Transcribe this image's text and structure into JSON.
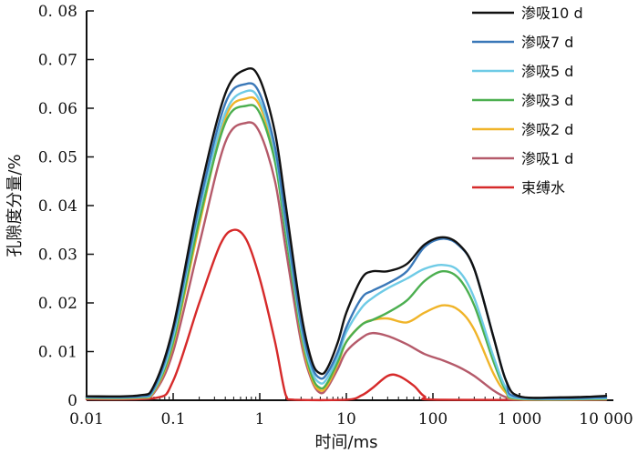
{
  "chart_data": {
    "type": "line",
    "xlabel": "时间/ms",
    "ylabel": "孔隙度分量/%",
    "xscale": "log",
    "xlim": [
      0.01,
      10000
    ],
    "ylim": [
      0,
      0.08
    ],
    "x_ticks": [
      {
        "value": 0.01,
        "label": "0.01"
      },
      {
        "value": 0.1,
        "label": "0.1"
      },
      {
        "value": 1,
        "label": "1"
      },
      {
        "value": 10,
        "label": "10"
      },
      {
        "value": 100,
        "label": "100"
      },
      {
        "value": 1000,
        "label": "1 000"
      },
      {
        "value": 10000,
        "label": "10 000"
      }
    ],
    "y_ticks": [
      {
        "value": 0,
        "label": "0"
      },
      {
        "value": 0.01,
        "label": "0. 01"
      },
      {
        "value": 0.02,
        "label": "0. 02"
      },
      {
        "value": 0.03,
        "label": "0. 03"
      },
      {
        "value": 0.04,
        "label": "0. 04"
      },
      {
        "value": 0.05,
        "label": "0. 05"
      },
      {
        "value": 0.06,
        "label": "0. 06"
      },
      {
        "value": 0.07,
        "label": "0. 07"
      },
      {
        "value": 0.08,
        "label": "0. 08"
      }
    ],
    "legend_position": "top-right",
    "series": [
      {
        "name": "渗吸10 d",
        "color": "#111111",
        "points": [
          [
            0.01,
            0.0008
          ],
          [
            0.04,
            0.001
          ],
          [
            0.06,
            0.003
          ],
          [
            0.1,
            0.015
          ],
          [
            0.2,
            0.042
          ],
          [
            0.4,
            0.063
          ],
          [
            0.7,
            0.068
          ],
          [
            1,
            0.066
          ],
          [
            1.5,
            0.055
          ],
          [
            2,
            0.04
          ],
          [
            3,
            0.018
          ],
          [
            4,
            0.008
          ],
          [
            5,
            0.0055
          ],
          [
            6,
            0.0065
          ],
          [
            8,
            0.012
          ],
          [
            10,
            0.018
          ],
          [
            15,
            0.025
          ],
          [
            20,
            0.0265
          ],
          [
            30,
            0.0265
          ],
          [
            50,
            0.028
          ],
          [
            80,
            0.032
          ],
          [
            130,
            0.0335
          ],
          [
            200,
            0.032
          ],
          [
            300,
            0.027
          ],
          [
            500,
            0.013
          ],
          [
            700,
            0.004
          ],
          [
            1000,
            0.0008
          ],
          [
            3000,
            0.0006
          ],
          [
            6000,
            0.0007
          ],
          [
            10000,
            0.0009
          ]
        ]
      },
      {
        "name": "渗吸7 d",
        "color": "#3a78b8",
        "points": [
          [
            0.01,
            0.0007
          ],
          [
            0.04,
            0.0008
          ],
          [
            0.06,
            0.0025
          ],
          [
            0.1,
            0.014
          ],
          [
            0.2,
            0.04
          ],
          [
            0.4,
            0.061
          ],
          [
            0.7,
            0.065
          ],
          [
            1,
            0.063
          ],
          [
            1.5,
            0.052
          ],
          [
            2,
            0.037
          ],
          [
            3,
            0.016
          ],
          [
            4,
            0.007
          ],
          [
            5,
            0.0045
          ],
          [
            6,
            0.0055
          ],
          [
            8,
            0.01
          ],
          [
            10,
            0.015
          ],
          [
            15,
            0.021
          ],
          [
            20,
            0.0225
          ],
          [
            30,
            0.024
          ],
          [
            50,
            0.0265
          ],
          [
            80,
            0.0315
          ],
          [
            130,
            0.0332
          ],
          [
            200,
            0.0318
          ],
          [
            300,
            0.027
          ],
          [
            500,
            0.013
          ],
          [
            700,
            0.004
          ],
          [
            1000,
            0.0006
          ],
          [
            10000,
            0.0006
          ]
        ]
      },
      {
        "name": "渗吸5 d",
        "color": "#6fcbe6",
        "points": [
          [
            0.01,
            0.0006
          ],
          [
            0.04,
            0.0007
          ],
          [
            0.06,
            0.0022
          ],
          [
            0.1,
            0.013
          ],
          [
            0.2,
            0.039
          ],
          [
            0.4,
            0.059
          ],
          [
            0.7,
            0.0635
          ],
          [
            1,
            0.0615
          ],
          [
            1.5,
            0.051
          ],
          [
            2,
            0.036
          ],
          [
            3,
            0.015
          ],
          [
            4,
            0.006
          ],
          [
            5,
            0.0035
          ],
          [
            6,
            0.0045
          ],
          [
            8,
            0.009
          ],
          [
            10,
            0.014
          ],
          [
            15,
            0.019
          ],
          [
            20,
            0.021
          ],
          [
            30,
            0.023
          ],
          [
            50,
            0.025
          ],
          [
            80,
            0.027
          ],
          [
            130,
            0.0278
          ],
          [
            200,
            0.0265
          ],
          [
            300,
            0.021
          ],
          [
            500,
            0.009
          ],
          [
            700,
            0.0025
          ],
          [
            1000,
            0.0004
          ],
          [
            10000,
            0.0004
          ]
        ]
      },
      {
        "name": "渗吸3 d",
        "color": "#4caf50",
        "points": [
          [
            0.01,
            0.0005
          ],
          [
            0.04,
            0.0006
          ],
          [
            0.06,
            0.002
          ],
          [
            0.1,
            0.012
          ],
          [
            0.2,
            0.037
          ],
          [
            0.4,
            0.057
          ],
          [
            0.7,
            0.0605
          ],
          [
            1,
            0.059
          ],
          [
            1.5,
            0.049
          ],
          [
            2,
            0.034
          ],
          [
            3,
            0.014
          ],
          [
            4,
            0.005
          ],
          [
            5,
            0.0025
          ],
          [
            6,
            0.0035
          ],
          [
            8,
            0.008
          ],
          [
            10,
            0.012
          ],
          [
            15,
            0.0155
          ],
          [
            20,
            0.0165
          ],
          [
            30,
            0.018
          ],
          [
            50,
            0.0205
          ],
          [
            80,
            0.0245
          ],
          [
            130,
            0.0265
          ],
          [
            200,
            0.025
          ],
          [
            300,
            0.0195
          ],
          [
            500,
            0.008
          ],
          [
            700,
            0.002
          ],
          [
            1000,
            0.0003
          ],
          [
            10000,
            0.0003
          ]
        ]
      },
      {
        "name": "渗吸2 d",
        "color": "#f0b429",
        "points": [
          [
            0.01,
            0.0004
          ],
          [
            0.04,
            0.0005
          ],
          [
            0.06,
            0.0018
          ],
          [
            0.1,
            0.0115
          ],
          [
            0.2,
            0.036
          ],
          [
            0.4,
            0.058
          ],
          [
            0.7,
            0.062
          ],
          [
            1,
            0.0605
          ],
          [
            1.5,
            0.05
          ],
          [
            2,
            0.035
          ],
          [
            3,
            0.0135
          ],
          [
            4,
            0.0045
          ],
          [
            5,
            0.002
          ],
          [
            6,
            0.003
          ],
          [
            8,
            0.0075
          ],
          [
            10,
            0.012
          ],
          [
            15,
            0.0155
          ],
          [
            20,
            0.0165
          ],
          [
            30,
            0.0168
          ],
          [
            50,
            0.016
          ],
          [
            80,
            0.018
          ],
          [
            130,
            0.0195
          ],
          [
            200,
            0.0185
          ],
          [
            300,
            0.0145
          ],
          [
            500,
            0.0055
          ],
          [
            700,
            0.0015
          ],
          [
            1000,
            0.0002
          ],
          [
            10000,
            0.0002
          ]
        ]
      },
      {
        "name": "渗吸1 d",
        "color": "#b55a6a",
        "points": [
          [
            0.01,
            0.0003
          ],
          [
            0.04,
            0.0004
          ],
          [
            0.06,
            0.0015
          ],
          [
            0.1,
            0.01
          ],
          [
            0.2,
            0.032
          ],
          [
            0.4,
            0.053
          ],
          [
            0.7,
            0.057
          ],
          [
            1,
            0.055
          ],
          [
            1.5,
            0.045
          ],
          [
            2,
            0.031
          ],
          [
            3,
            0.012
          ],
          [
            4,
            0.004
          ],
          [
            5,
            0.0015
          ],
          [
            6,
            0.0025
          ],
          [
            8,
            0.0065
          ],
          [
            10,
            0.01
          ],
          [
            15,
            0.0128
          ],
          [
            20,
            0.0138
          ],
          [
            30,
            0.0132
          ],
          [
            50,
            0.0115
          ],
          [
            80,
            0.0095
          ],
          [
            130,
            0.0082
          ],
          [
            200,
            0.0068
          ],
          [
            300,
            0.005
          ],
          [
            500,
            0.002
          ],
          [
            700,
            0.0006
          ],
          [
            1000,
            0.0001
          ],
          [
            10000,
            0.0001
          ]
        ]
      },
      {
        "name": "束缚水",
        "color": "#d62a2a",
        "points": [
          [
            0.01,
            0.0002
          ],
          [
            0.06,
            0.0004
          ],
          [
            0.1,
            0.004
          ],
          [
            0.2,
            0.02
          ],
          [
            0.35,
            0.032
          ],
          [
            0.5,
            0.035
          ],
          [
            0.7,
            0.033
          ],
          [
            1,
            0.025
          ],
          [
            1.5,
            0.012
          ],
          [
            2,
            0.001
          ],
          [
            2.5,
            0.0001
          ],
          [
            10,
            0.0001
          ],
          [
            15,
            0.001
          ],
          [
            20,
            0.0025
          ],
          [
            30,
            0.005
          ],
          [
            40,
            0.005
          ],
          [
            60,
            0.003
          ],
          [
            80,
            0.0008
          ],
          [
            120,
            0.0001
          ],
          [
            10000,
            0.0001
          ]
        ]
      }
    ]
  }
}
